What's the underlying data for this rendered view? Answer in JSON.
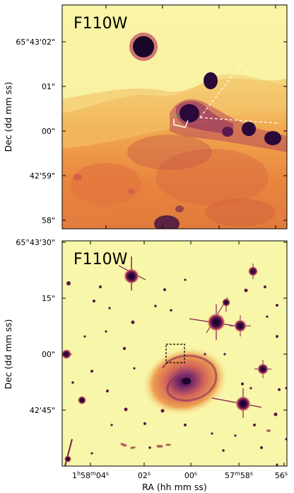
{
  "panels": [
    {
      "filter_label": "F110W",
      "y_ticks": [
        "65°43'02\"",
        "01\"",
        "00\"",
        "42'59\"",
        "58\""
      ]
    },
    {
      "filter_label": "F110W",
      "y_ticks": [
        "65°43'30\"",
        "15\"",
        "00\"",
        "42'45\""
      ]
    }
  ],
  "y_axis_title": "Dec (dd mm ss)",
  "x_axis_title": "RA (hh mm ss)",
  "x_ticks": [
    {
      "main": "1",
      "sup1": "h",
      "mid": "58",
      "sup2": "m",
      "num": "04",
      "sup3": "s"
    },
    {
      "num": "02",
      "sup": "s"
    },
    {
      "num": "00",
      "sup": "s"
    },
    {
      "main": "57",
      "sup1": "m",
      "num": "58",
      "sup2": "s"
    },
    {
      "num": "56",
      "sup": "s"
    }
  ],
  "colors": {
    "background": "#f8f6a8",
    "mid": "#f5b64c",
    "orange": "#e8743a",
    "magenta": "#9c2a6a",
    "dark": "#1a0628"
  }
}
